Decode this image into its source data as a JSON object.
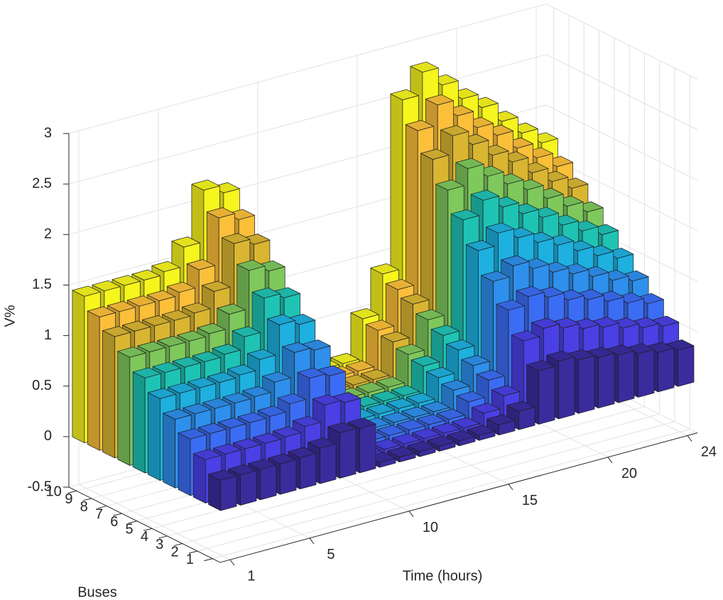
{
  "chart_data": {
    "type": "bar3",
    "xlabel": "Time (hours)",
    "ylabel": "Buses",
    "zlabel": "V%",
    "xlim": [
      0.5,
      24.5
    ],
    "ylim": [
      0.5,
      10.5
    ],
    "zlim": [
      -0.5,
      3
    ],
    "xticks": [
      1,
      5,
      10,
      15,
      20,
      24
    ],
    "yticks": [
      1,
      2,
      3,
      4,
      5,
      6,
      7,
      8,
      9,
      10
    ],
    "zticks": [
      -0.5,
      0,
      0.5,
      1,
      1.5,
      2,
      2.5,
      3
    ],
    "grid": true,
    "series": [
      {
        "color": "#3b2c9e",
        "values": [
          0.3,
          0.3,
          0.3,
          0.3,
          0.31,
          0.35,
          0.45,
          0.44,
          0.05,
          0.05,
          0.05,
          0.05,
          0.05,
          0.05,
          0.1,
          0.18,
          0.53,
          0.57,
          0.53,
          0.5,
          0.47,
          0.43,
          0.39,
          0.36
        ]
      },
      {
        "color": "#4a40e4",
        "values": [
          0.43,
          0.43,
          0.43,
          0.43,
          0.44,
          0.49,
          0.65,
          0.62,
          0.05,
          0.05,
          0.05,
          0.05,
          0.05,
          0.05,
          0.14,
          0.26,
          0.75,
          0.82,
          0.77,
          0.71,
          0.67,
          0.61,
          0.56,
          0.52
        ]
      },
      {
        "color": "#3b6df4",
        "values": [
          0.56,
          0.56,
          0.56,
          0.56,
          0.57,
          0.64,
          0.84,
          0.81,
          0.06,
          0.06,
          0.06,
          0.06,
          0.06,
          0.06,
          0.18,
          0.34,
          0.98,
          1.06,
          1.0,
          0.92,
          0.87,
          0.8,
          0.73,
          0.67
        ]
      },
      {
        "color": "#2e90ec",
        "values": [
          0.68,
          0.68,
          0.68,
          0.68,
          0.69,
          0.78,
          1.02,
          0.99,
          0.06,
          0.06,
          0.06,
          0.06,
          0.06,
          0.06,
          0.22,
          0.41,
          1.19,
          1.29,
          1.21,
          1.12,
          1.05,
          0.97,
          0.88,
          0.82
        ]
      },
      {
        "color": "#1eb0df",
        "values": [
          0.81,
          0.81,
          0.81,
          0.81,
          0.83,
          0.93,
          1.22,
          1.17,
          0.07,
          0.07,
          0.07,
          0.07,
          0.07,
          0.07,
          0.27,
          0.49,
          1.42,
          1.54,
          1.44,
          1.34,
          1.26,
          1.15,
          1.05,
          0.97
        ]
      },
      {
        "color": "#1fc3b4",
        "values": [
          0.94,
          0.94,
          0.94,
          0.94,
          0.96,
          1.08,
          1.41,
          1.36,
          0.07,
          0.07,
          0.07,
          0.07,
          0.07,
          0.07,
          0.31,
          0.56,
          1.65,
          1.79,
          1.67,
          1.55,
          1.46,
          1.33,
          1.22,
          1.13
        ]
      },
      {
        "color": "#7ec85c",
        "values": [
          1.07,
          1.07,
          1.07,
          1.07,
          1.09,
          1.23,
          1.61,
          1.55,
          0.08,
          0.08,
          0.08,
          0.08,
          0.08,
          0.08,
          0.35,
          0.64,
          1.87,
          2.03,
          1.9,
          1.77,
          1.66,
          1.52,
          1.39,
          1.28
        ]
      },
      {
        "color": "#d9b532",
        "values": [
          1.2,
          1.2,
          1.2,
          1.2,
          1.22,
          1.38,
          1.8,
          1.74,
          0.08,
          0.08,
          0.08,
          0.08,
          0.08,
          0.08,
          0.4,
          0.72,
          2.1,
          2.28,
          2.14,
          1.98,
          1.86,
          1.7,
          1.56,
          1.44
        ]
      },
      {
        "color": "#fbbf3a",
        "values": [
          1.32,
          1.32,
          1.32,
          1.32,
          1.35,
          1.52,
          1.98,
          1.91,
          0.09,
          0.09,
          0.09,
          0.09,
          0.09,
          0.09,
          0.44,
          0.79,
          2.31,
          2.51,
          2.35,
          2.18,
          2.05,
          1.87,
          1.72,
          1.58
        ]
      },
      {
        "color": "#f7f51e",
        "values": [
          1.45,
          1.45,
          1.45,
          1.45,
          1.48,
          1.67,
          2.18,
          2.1,
          0.09,
          0.09,
          0.09,
          0.09,
          0.09,
          0.09,
          0.48,
          0.87,
          2.54,
          2.76,
          2.58,
          2.39,
          2.25,
          2.06,
          1.89,
          1.74
        ]
      }
    ]
  }
}
